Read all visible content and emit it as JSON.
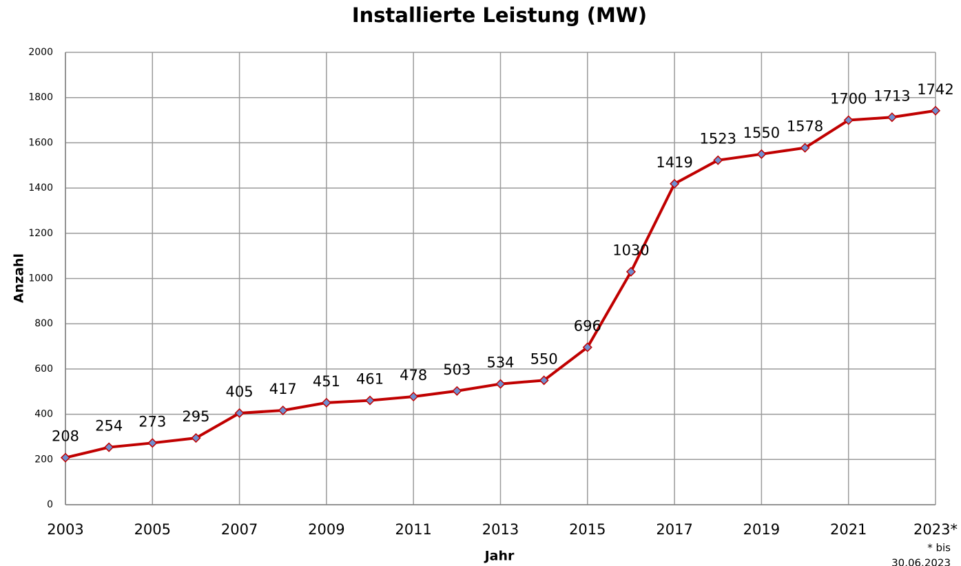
{
  "chart_data": {
    "type": "line",
    "title": "Installierte Leistung (MW)",
    "x_label": "Jahr",
    "y_label": "Anzahl",
    "annotation": [
      "* bis",
      "30.06.2023"
    ],
    "x": [
      2003,
      2004,
      2005,
      2006,
      2007,
      2008,
      2009,
      2010,
      2011,
      2012,
      2013,
      2014,
      2015,
      2016,
      2017,
      2018,
      2019,
      2020,
      2021,
      2022,
      2023
    ],
    "series": [
      {
        "name": "Installierte Leistung",
        "color": "#c00000",
        "marker_color": "#6f8fd0",
        "values": [
          208,
          254,
          273,
          295,
          405,
          417,
          451,
          461,
          478,
          503,
          534,
          550,
          696,
          1030,
          1419,
          1523,
          1550,
          1578,
          1700,
          1713,
          1742
        ]
      }
    ],
    "xlim": [
      2003,
      2023
    ],
    "xticks": [
      2003,
      2005,
      2007,
      2009,
      2011,
      2013,
      2015,
      2017,
      2019,
      2021,
      {
        "value": 2023,
        "label": "2023*"
      }
    ],
    "ylim": [
      0,
      2000
    ],
    "yticks": [
      0,
      200,
      400,
      600,
      800,
      1000,
      1200,
      1400,
      1600,
      1800,
      2000
    ],
    "grid": true
  }
}
